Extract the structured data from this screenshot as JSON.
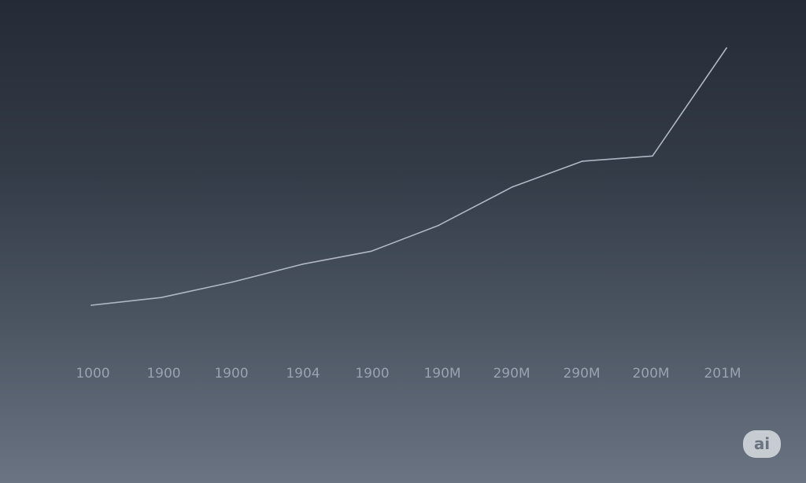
{
  "chart_data": {
    "type": "line",
    "title": "",
    "xlabel": "",
    "ylabel": "",
    "categories": [
      "1000",
      "1900",
      "1900",
      "1904",
      "1900",
      "190M",
      "290M",
      "290M",
      "200M",
      "201M"
    ],
    "series": [
      {
        "values": [
          0,
          3,
          9,
          16,
          21,
          31,
          46,
          56,
          58,
          100
        ]
      }
    ],
    "ylim": [
      0,
      100
    ],
    "grid": false,
    "legend": "none",
    "colors": {
      "line": "#aeb7c3",
      "tick_labels": "#98a2b0"
    }
  },
  "badge": {
    "label": "ai"
  }
}
